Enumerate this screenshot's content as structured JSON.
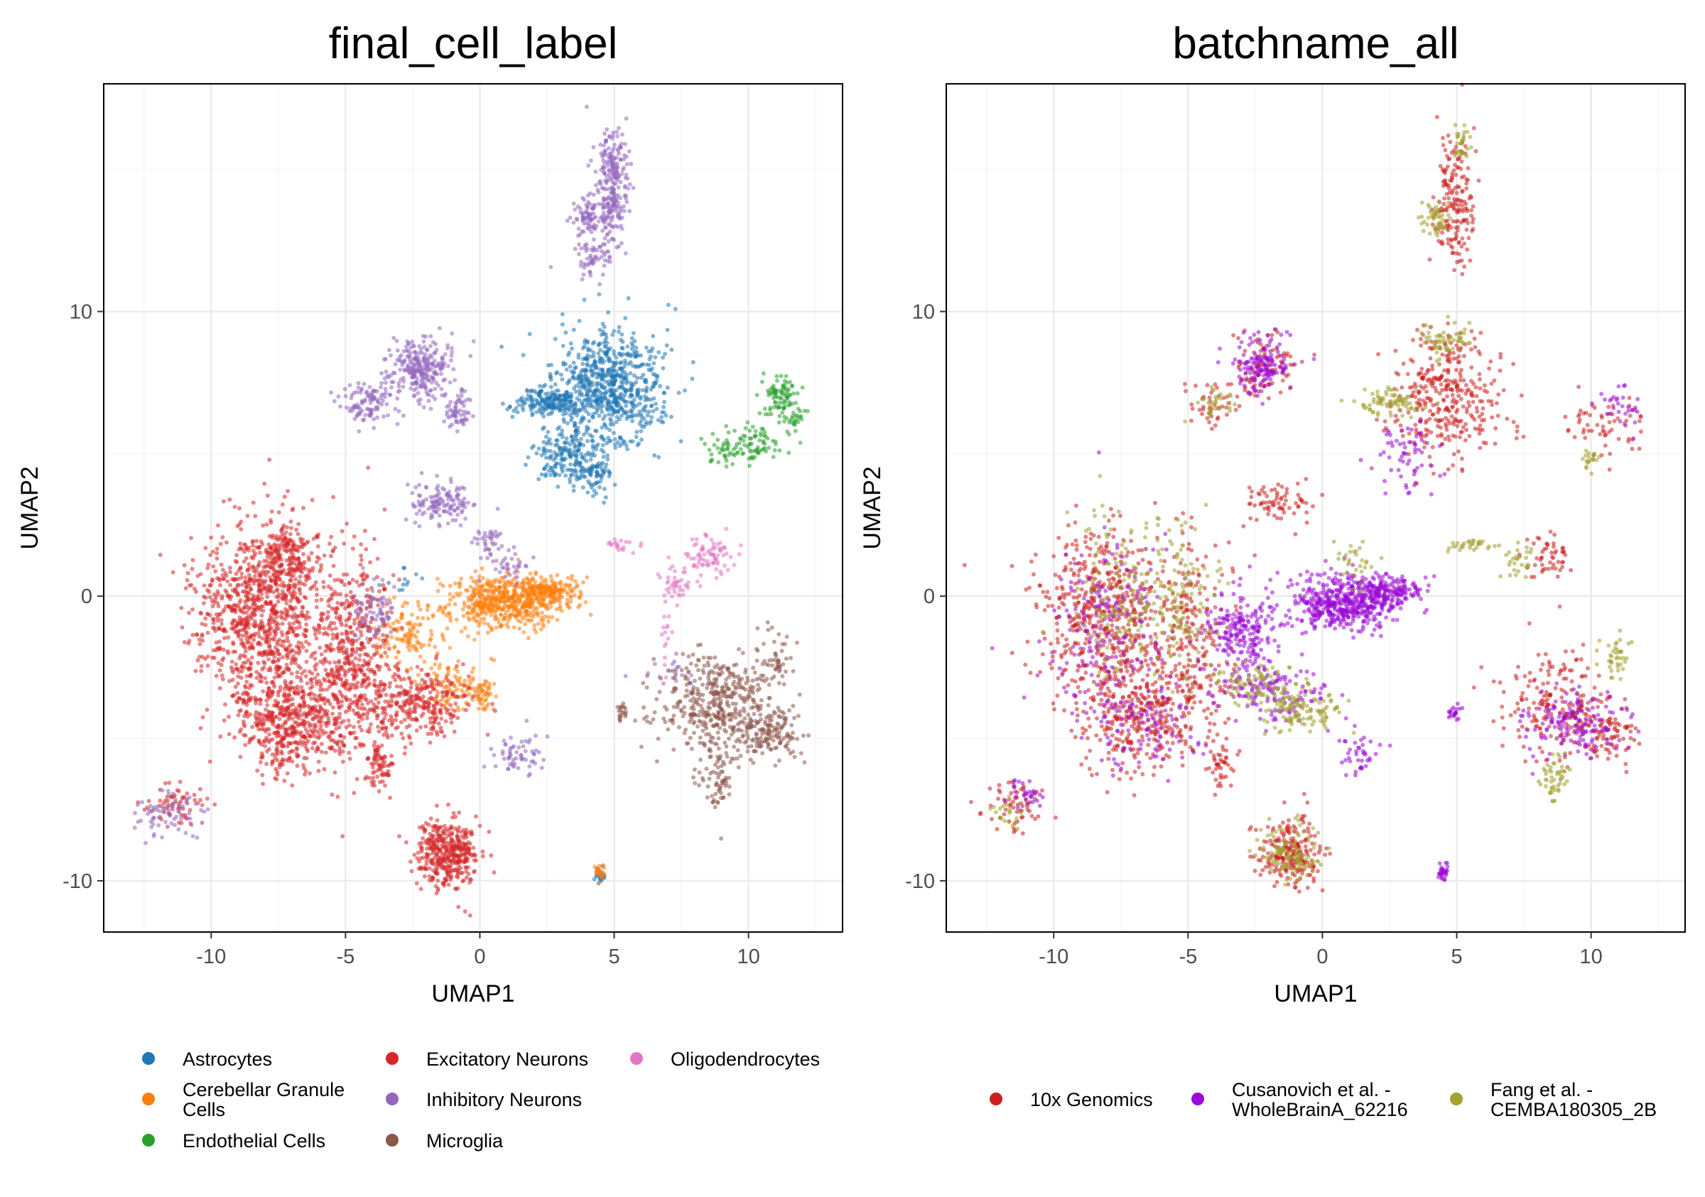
{
  "chart_data": [
    {
      "type": "scatter",
      "title": "final_cell_label",
      "xlabel": "UMAP1",
      "ylabel": "UMAP2",
      "xlim": [
        -14,
        13.5
      ],
      "ylim": [
        -11.8,
        18
      ],
      "xticks": [
        -10,
        -5,
        0,
        5,
        10
      ],
      "yticks": [
        -10,
        0,
        10
      ],
      "xtick_labels": [
        "-10",
        "-5",
        "0",
        "5",
        "10"
      ],
      "ytick_labels": [
        "-10",
        "0",
        "10"
      ],
      "grid": true,
      "legend_position": "bottom",
      "series": [
        {
          "name": "Astrocytes",
          "color": "#1f77b4",
          "clusters": [
            {
              "x": 4.8,
              "y": 7.3,
              "sx": 1.0,
              "sy": 1.0,
              "n": 700
            },
            {
              "x": 2.6,
              "y": 6.8,
              "sx": 0.6,
              "sy": 0.25,
              "n": 180
            },
            {
              "x": 3.4,
              "y": 5.0,
              "sx": 0.6,
              "sy": 0.6,
              "n": 200
            },
            {
              "x": 4.3,
              "y": 4.3,
              "sx": 0.3,
              "sy": 0.3,
              "n": 50
            },
            {
              "x": 4.5,
              "y": -9.8,
              "sx": 0.12,
              "sy": 0.15,
              "n": 25
            },
            {
              "x": -3.0,
              "y": 0.6,
              "sx": 0.3,
              "sy": 0.3,
              "n": 12
            }
          ]
        },
        {
          "name": "Cerebellar Granule Cells",
          "color": "#ff7f0e",
          "clusters": [
            {
              "x": 0.8,
              "y": -0.2,
              "sx": 1.0,
              "sy": 0.5,
              "n": 500
            },
            {
              "x": 2.5,
              "y": 0.2,
              "sx": 0.6,
              "sy": 0.25,
              "n": 200
            },
            {
              "x": -2.6,
              "y": -1.3,
              "sx": 0.6,
              "sy": 0.6,
              "n": 120
            },
            {
              "x": -1.2,
              "y": -3.2,
              "sx": 0.5,
              "sy": 0.4,
              "n": 80
            },
            {
              "x": 0.0,
              "y": -3.4,
              "sx": 0.3,
              "sy": 0.3,
              "n": 60
            },
            {
              "x": 4.5,
              "y": -9.7,
              "sx": 0.1,
              "sy": 0.15,
              "n": 20
            }
          ]
        },
        {
          "name": "Endothelial Cells",
          "color": "#2ca02c",
          "clusters": [
            {
              "x": 11.2,
              "y": 7.0,
              "sx": 0.35,
              "sy": 0.35,
              "n": 80
            },
            {
              "x": 10.4,
              "y": 5.4,
              "sx": 0.5,
              "sy": 0.35,
              "n": 60
            },
            {
              "x": 9.2,
              "y": 5.2,
              "sx": 0.5,
              "sy": 0.3,
              "n": 50
            },
            {
              "x": 11.7,
              "y": 6.3,
              "sx": 0.3,
              "sy": 0.2,
              "n": 30
            }
          ]
        },
        {
          "name": "Excitatory Neurons",
          "color": "#d62728",
          "clusters": [
            {
              "x": -8.2,
              "y": -0.5,
              "sx": 1.2,
              "sy": 1.4,
              "n": 900
            },
            {
              "x": -7.0,
              "y": -4.2,
              "sx": 1.1,
              "sy": 1.0,
              "n": 600
            },
            {
              "x": -7.2,
              "y": 1.5,
              "sx": 0.5,
              "sy": 0.6,
              "n": 150
            },
            {
              "x": -4.8,
              "y": -2.0,
              "sx": 0.8,
              "sy": 1.8,
              "n": 500
            },
            {
              "x": -2.5,
              "y": -3.8,
              "sx": 1.0,
              "sy": 0.6,
              "n": 300
            },
            {
              "x": -1.2,
              "y": -9.0,
              "sx": 0.6,
              "sy": 0.6,
              "n": 400
            },
            {
              "x": -3.8,
              "y": -5.9,
              "sx": 0.25,
              "sy": 0.5,
              "n": 70
            },
            {
              "x": -11.3,
              "y": -7.3,
              "sx": 0.6,
              "sy": 0.4,
              "n": 60
            }
          ]
        },
        {
          "name": "Inhibitory Neurons",
          "color": "#9467bd",
          "clusters": [
            {
              "x": 4.9,
              "y": 14.5,
              "sx": 0.3,
              "sy": 1.0,
              "n": 260
            },
            {
              "x": 4.0,
              "y": 13.3,
              "sx": 0.25,
              "sy": 0.3,
              "n": 70
            },
            {
              "x": 4.3,
              "y": 11.9,
              "sx": 0.5,
              "sy": 0.35,
              "n": 60
            },
            {
              "x": -2.2,
              "y": 8.0,
              "sx": 0.6,
              "sy": 0.55,
              "n": 260
            },
            {
              "x": -4.2,
              "y": 6.8,
              "sx": 0.55,
              "sy": 0.4,
              "n": 110
            },
            {
              "x": -0.9,
              "y": 6.5,
              "sx": 0.3,
              "sy": 0.35,
              "n": 60
            },
            {
              "x": -1.6,
              "y": 3.3,
              "sx": 0.6,
              "sy": 0.35,
              "n": 130
            },
            {
              "x": 0.3,
              "y": 1.9,
              "sx": 0.3,
              "sy": 0.4,
              "n": 40
            },
            {
              "x": 1.1,
              "y": 1.0,
              "sx": 0.3,
              "sy": 0.3,
              "n": 30
            },
            {
              "x": -3.9,
              "y": -0.5,
              "sx": 0.4,
              "sy": 0.5,
              "n": 70
            },
            {
              "x": 1.4,
              "y": -5.6,
              "sx": 0.45,
              "sy": 0.4,
              "n": 60
            },
            {
              "x": -11.8,
              "y": -7.7,
              "sx": 0.6,
              "sy": 0.35,
              "n": 70
            },
            {
              "x": 7.2,
              "y": -2.6,
              "sx": 0.6,
              "sy": 0.3,
              "n": 20
            }
          ]
        },
        {
          "name": "Microglia",
          "color": "#8c564b",
          "clusters": [
            {
              "x": 8.8,
              "y": -3.8,
              "sx": 1.0,
              "sy": 0.9,
              "n": 420
            },
            {
              "x": 10.7,
              "y": -4.8,
              "sx": 0.55,
              "sy": 0.5,
              "n": 150
            },
            {
              "x": 8.8,
              "y": -6.5,
              "sx": 0.3,
              "sy": 0.45,
              "n": 60
            },
            {
              "x": 11.0,
              "y": -2.2,
              "sx": 0.35,
              "sy": 0.5,
              "n": 50
            },
            {
              "x": 5.3,
              "y": -4.1,
              "sx": 0.1,
              "sy": 0.15,
              "n": 20
            }
          ]
        },
        {
          "name": "Oligodendrocytes",
          "color": "#e377c2",
          "clusters": [
            {
              "x": 8.5,
              "y": 1.5,
              "sx": 0.45,
              "sy": 0.4,
              "n": 80
            },
            {
              "x": 7.3,
              "y": 0.4,
              "sx": 0.3,
              "sy": 0.3,
              "n": 40
            },
            {
              "x": 5.3,
              "y": 1.8,
              "sx": 0.3,
              "sy": 0.1,
              "n": 20
            },
            {
              "x": 6.9,
              "y": -1.4,
              "sx": 0.1,
              "sy": 0.6,
              "n": 15
            }
          ]
        }
      ]
    },
    {
      "type": "scatter",
      "title": "batchname_all",
      "xlabel": "UMAP1",
      "ylabel": "UMAP2",
      "xlim": [
        -14,
        13.5
      ],
      "ylim": [
        -11.8,
        18
      ],
      "xticks": [
        -10,
        -5,
        0,
        5,
        10
      ],
      "yticks": [
        -10,
        0,
        10
      ],
      "xtick_labels": [
        "-10",
        "-5",
        "0",
        "5",
        "10"
      ],
      "ytick_labels": [
        "-10",
        "0",
        "10"
      ],
      "grid": true,
      "legend_position": "bottom",
      "series": [
        {
          "name": "10x Genomics",
          "color": "#cc1f1f",
          "clusters": [
            {
              "x": -8.2,
              "y": -0.5,
              "sx": 1.2,
              "sy": 1.4,
              "n": 500
            },
            {
              "x": -7.0,
              "y": -4.2,
              "sx": 1.1,
              "sy": 1.0,
              "n": 330
            },
            {
              "x": -4.8,
              "y": -2.0,
              "sx": 0.8,
              "sy": 1.8,
              "n": 250
            },
            {
              "x": -1.2,
              "y": -9.0,
              "sx": 0.6,
              "sy": 0.6,
              "n": 220
            },
            {
              "x": 4.9,
              "y": 14.0,
              "sx": 0.35,
              "sy": 1.2,
              "n": 180
            },
            {
              "x": 4.5,
              "y": 7.0,
              "sx": 1.1,
              "sy": 1.1,
              "n": 350
            },
            {
              "x": 8.8,
              "y": -3.8,
              "sx": 1.0,
              "sy": 0.9,
              "n": 200
            },
            {
              "x": 10.7,
              "y": -4.8,
              "sx": 0.55,
              "sy": 0.5,
              "n": 80
            },
            {
              "x": -2.2,
              "y": 8.0,
              "sx": 0.6,
              "sy": 0.55,
              "n": 90
            },
            {
              "x": -1.6,
              "y": 3.3,
              "sx": 0.6,
              "sy": 0.35,
              "n": 70
            },
            {
              "x": 8.4,
              "y": 1.3,
              "sx": 0.4,
              "sy": 0.45,
              "n": 50
            },
            {
              "x": -11.5,
              "y": -7.4,
              "sx": 0.6,
              "sy": 0.4,
              "n": 60
            },
            {
              "x": 10.5,
              "y": 6.0,
              "sx": 0.8,
              "sy": 0.6,
              "n": 60
            },
            {
              "x": -3.8,
              "y": -5.9,
              "sx": 0.25,
              "sy": 0.5,
              "n": 40
            },
            {
              "x": -4.2,
              "y": 6.8,
              "sx": 0.55,
              "sy": 0.4,
              "n": 40
            }
          ]
        },
        {
          "name": "Cusanovich et al. - WholeBrainA_62216",
          "color": "#9a09d6",
          "clusters": [
            {
              "x": 0.8,
              "y": -0.2,
              "sx": 1.0,
              "sy": 0.5,
              "n": 500
            },
            {
              "x": 2.5,
              "y": 0.2,
              "sx": 0.6,
              "sy": 0.25,
              "n": 150
            },
            {
              "x": -3.0,
              "y": -1.2,
              "sx": 0.7,
              "sy": 0.6,
              "n": 200
            },
            {
              "x": -2.2,
              "y": 8.2,
              "sx": 0.6,
              "sy": 0.5,
              "n": 150
            },
            {
              "x": -2.0,
              "y": -3.3,
              "sx": 1.0,
              "sy": 0.6,
              "n": 150
            },
            {
              "x": 9.5,
              "y": -4.6,
              "sx": 0.9,
              "sy": 0.6,
              "n": 150
            },
            {
              "x": -8.0,
              "y": -1.0,
              "sx": 1.1,
              "sy": 1.5,
              "n": 180
            },
            {
              "x": -6.5,
              "y": -4.5,
              "sx": 1.0,
              "sy": 0.8,
              "n": 100
            },
            {
              "x": 4.5,
              "y": -9.7,
              "sx": 0.12,
              "sy": 0.15,
              "n": 30
            },
            {
              "x": 4.9,
              "y": -4.1,
              "sx": 0.1,
              "sy": 0.15,
              "n": 20
            },
            {
              "x": 1.3,
              "y": -5.6,
              "sx": 0.4,
              "sy": 0.4,
              "n": 40
            },
            {
              "x": 3.3,
              "y": 4.8,
              "sx": 0.6,
              "sy": 0.6,
              "n": 60
            },
            {
              "x": -11.0,
              "y": -7.0,
              "sx": 0.4,
              "sy": 0.3,
              "n": 30
            },
            {
              "x": 11.0,
              "y": 6.8,
              "sx": 0.4,
              "sy": 0.4,
              "n": 30
            }
          ]
        },
        {
          "name": "Fang et al. - CEMBA180305_2B",
          "color": "#a3a130",
          "clusters": [
            {
              "x": 2.6,
              "y": 6.8,
              "sx": 0.6,
              "sy": 0.25,
              "n": 80
            },
            {
              "x": 4.5,
              "y": 9.0,
              "sx": 0.5,
              "sy": 0.3,
              "n": 60
            },
            {
              "x": 4.2,
              "y": 13.3,
              "sx": 0.3,
              "sy": 0.3,
              "n": 50
            },
            {
              "x": 5.2,
              "y": 16.0,
              "sx": 0.15,
              "sy": 0.3,
              "n": 30
            },
            {
              "x": -1.2,
              "y": -9.0,
              "sx": 0.5,
              "sy": 0.5,
              "n": 120
            },
            {
              "x": -0.8,
              "y": -4.0,
              "sx": 0.8,
              "sy": 0.4,
              "n": 120
            },
            {
              "x": -2.5,
              "y": -3.0,
              "sx": 0.8,
              "sy": 0.4,
              "n": 80
            },
            {
              "x": 8.7,
              "y": -6.4,
              "sx": 0.3,
              "sy": 0.45,
              "n": 50
            },
            {
              "x": 11.0,
              "y": -2.2,
              "sx": 0.3,
              "sy": 0.5,
              "n": 40
            },
            {
              "x": 5.5,
              "y": 1.8,
              "sx": 0.4,
              "sy": 0.12,
              "n": 30
            },
            {
              "x": 7.3,
              "y": 1.2,
              "sx": 0.3,
              "sy": 0.4,
              "n": 30
            },
            {
              "x": 1.3,
              "y": 1.3,
              "sx": 0.3,
              "sy": 0.4,
              "n": 30
            },
            {
              "x": -7.5,
              "y": 0.0,
              "sx": 1.0,
              "sy": 1.5,
              "n": 150
            },
            {
              "x": -5.2,
              "y": 0.0,
              "sx": 0.6,
              "sy": 1.2,
              "n": 120
            },
            {
              "x": 10.0,
              "y": 4.8,
              "sx": 0.2,
              "sy": 0.2,
              "n": 20
            },
            {
              "x": -4.0,
              "y": 6.8,
              "sx": 0.4,
              "sy": 0.3,
              "n": 30
            },
            {
              "x": -11.8,
              "y": -7.7,
              "sx": 0.4,
              "sy": 0.3,
              "n": 20
            }
          ]
        }
      ]
    }
  ],
  "legends": {
    "left": [
      {
        "label_lines": [
          "Astrocytes"
        ],
        "color": "#1f77b4"
      },
      {
        "label_lines": [
          "Cerebellar Granule",
          "Cells"
        ],
        "color": "#ff7f0e"
      },
      {
        "label_lines": [
          "Endothelial Cells"
        ],
        "color": "#2ca02c"
      },
      {
        "label_lines": [
          "Excitatory Neurons"
        ],
        "color": "#d62728"
      },
      {
        "label_lines": [
          "Inhibitory Neurons"
        ],
        "color": "#9467bd"
      },
      {
        "label_lines": [
          "Microglia"
        ],
        "color": "#8c564b"
      },
      {
        "label_lines": [
          "Oligodendrocytes"
        ],
        "color": "#e377c2"
      }
    ],
    "right": [
      {
        "label_lines": [
          "10x Genomics"
        ],
        "color": "#cc1f1f"
      },
      {
        "label_lines": [
          "Cusanovich et al. -",
          "WholeBrainA_62216"
        ],
        "color": "#9a09d6"
      },
      {
        "label_lines": [
          "Fang et al. -",
          "CEMBA180305_2B"
        ],
        "color": "#a3a130"
      }
    ]
  }
}
